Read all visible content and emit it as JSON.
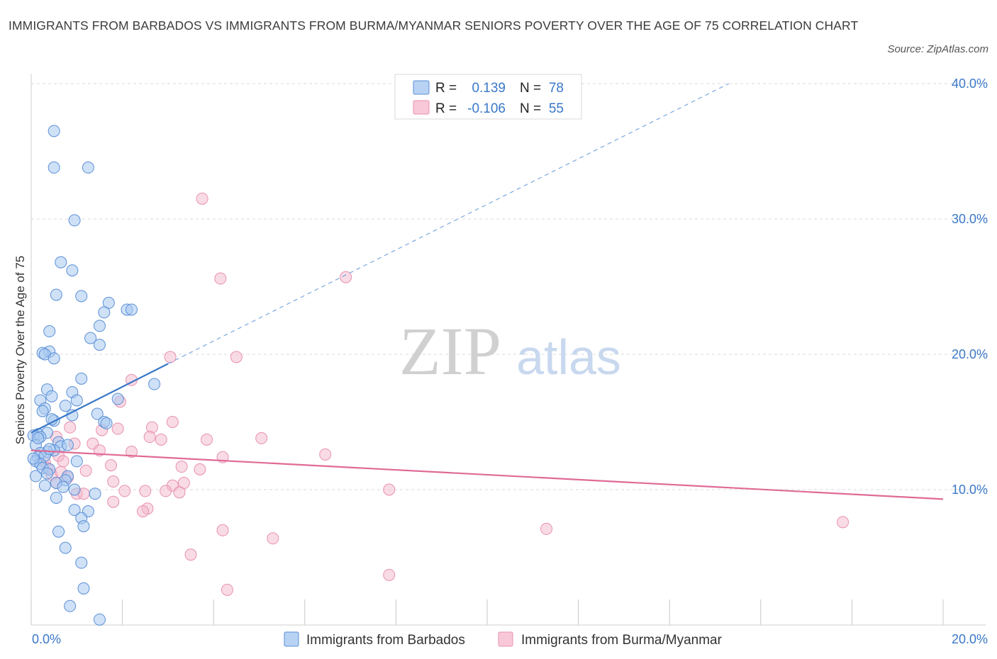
{
  "title": "IMMIGRANTS FROM BARBADOS VS IMMIGRANTS FROM BURMA/MYANMAR SENIORS POVERTY OVER THE AGE OF 75 CORRELATION CHART",
  "source": "Source: ZipAtlas.com",
  "watermark": {
    "zip": "ZIP",
    "atlas": "atlas"
  },
  "colors": {
    "blue": "#3a78c8",
    "blue_fill": "#a8c8f0",
    "pink": "#e06a96",
    "pink_fill": "#f4b8cc",
    "grid": "#d8d8d8"
  },
  "legend": {
    "rows": [
      {
        "r_label": "R =",
        "r_value": "0.139",
        "n_label": "N =",
        "n_value": "78"
      },
      {
        "r_label": "R =",
        "r_value": "-0.106",
        "n_label": "N =",
        "n_value": "55"
      }
    ]
  },
  "chart_data": {
    "type": "scatter",
    "title": "IMMIGRANTS FROM BARBADOS VS IMMIGRANTS FROM BURMA/MYANMAR SENIORS POVERTY OVER THE AGE OF 75 CORRELATION CHART",
    "xlabel": "",
    "ylabel": "Seniors Poverty Over the Age of 75",
    "xlim": [
      0,
      20
    ],
    "ylim": [
      0,
      40
    ],
    "x_tick_labels": [
      {
        "value": 0,
        "label": "0.0%"
      },
      {
        "value": 20,
        "label": "20.0%"
      }
    ],
    "y_tick_labels": [
      {
        "value": 10,
        "label": "10.0%"
      },
      {
        "value": 20,
        "label": "20.0%"
      },
      {
        "value": 30,
        "label": "30.0%"
      },
      {
        "value": 40,
        "label": "40.0%"
      }
    ],
    "series": [
      {
        "name": "Immigrants from Barbados",
        "color": "blue",
        "r": 0.139,
        "n": 78,
        "trend": {
          "x": [
            0,
            3.0
          ],
          "y": [
            14.2,
            19.3
          ],
          "dashed_extension": {
            "x": [
              3.0,
              15.3
            ],
            "y": [
              19.3,
              40
            ]
          }
        },
        "points": [
          [
            0.5,
            36.5
          ],
          [
            0.5,
            33.8
          ],
          [
            1.25,
            33.8
          ],
          [
            0.95,
            29.9
          ],
          [
            0.65,
            26.8
          ],
          [
            0.9,
            26.2
          ],
          [
            0.55,
            24.4
          ],
          [
            1.1,
            24.3
          ],
          [
            1.7,
            23.8
          ],
          [
            2.1,
            23.3
          ],
          [
            2.2,
            23.3
          ],
          [
            1.6,
            23.1
          ],
          [
            1.5,
            22.1
          ],
          [
            0.4,
            21.7
          ],
          [
            1.3,
            21.2
          ],
          [
            1.5,
            20.7
          ],
          [
            0.4,
            20.2
          ],
          [
            0.25,
            20.1
          ],
          [
            0.3,
            20.0
          ],
          [
            0.5,
            19.7
          ],
          [
            1.1,
            18.2
          ],
          [
            2.7,
            17.8
          ],
          [
            0.35,
            17.4
          ],
          [
            0.9,
            17.2
          ],
          [
            0.45,
            16.9
          ],
          [
            0.2,
            16.6
          ],
          [
            1.0,
            16.6
          ],
          [
            1.9,
            16.7
          ],
          [
            0.3,
            16.0
          ],
          [
            0.25,
            15.8
          ],
          [
            0.75,
            16.2
          ],
          [
            1.45,
            15.6
          ],
          [
            0.9,
            15.5
          ],
          [
            0.5,
            15.1
          ],
          [
            0.45,
            15.2
          ],
          [
            1.6,
            15.0
          ],
          [
            1.65,
            14.9
          ],
          [
            0.15,
            14.1
          ],
          [
            0.05,
            14.0
          ],
          [
            0.35,
            14.2
          ],
          [
            0.2,
            13.9
          ],
          [
            0.6,
            13.5
          ],
          [
            0.1,
            13.3
          ],
          [
            0.65,
            13.2
          ],
          [
            0.8,
            13.3
          ],
          [
            0.5,
            12.9
          ],
          [
            0.35,
            12.8
          ],
          [
            0.2,
            12.7
          ],
          [
            0.15,
            12.4
          ],
          [
            0.3,
            12.5
          ],
          [
            0.1,
            12.1
          ],
          [
            1.0,
            12.1
          ],
          [
            0.2,
            11.9
          ],
          [
            0.25,
            11.6
          ],
          [
            0.4,
            11.5
          ],
          [
            0.35,
            11.2
          ],
          [
            0.1,
            11.0
          ],
          [
            0.8,
            11.0
          ],
          [
            0.75,
            10.7
          ],
          [
            0.55,
            10.5
          ],
          [
            0.3,
            10.3
          ],
          [
            0.7,
            10.2
          ],
          [
            0.95,
            10.0
          ],
          [
            1.4,
            9.7
          ],
          [
            0.55,
            9.4
          ],
          [
            0.95,
            8.5
          ],
          [
            1.25,
            8.4
          ],
          [
            1.1,
            7.9
          ],
          [
            1.15,
            7.3
          ],
          [
            0.6,
            6.9
          ],
          [
            0.75,
            5.7
          ],
          [
            1.1,
            4.6
          ],
          [
            1.15,
            2.7
          ],
          [
            0.85,
            1.4
          ],
          [
            1.5,
            0.4
          ],
          [
            0.15,
            13.8
          ],
          [
            0.4,
            13.0
          ],
          [
            0.05,
            12.3
          ]
        ]
      },
      {
        "name": "Immigrants from Burma/Myanmar",
        "color": "pink",
        "r": -0.106,
        "n": 55,
        "trend": {
          "x": [
            0,
            20
          ],
          "y": [
            12.9,
            9.3
          ]
        },
        "points": [
          [
            3.75,
            31.5
          ],
          [
            4.15,
            25.6
          ],
          [
            6.9,
            25.7
          ],
          [
            3.05,
            19.8
          ],
          [
            4.5,
            19.8
          ],
          [
            2.2,
            18.1
          ],
          [
            1.95,
            16.5
          ],
          [
            3.1,
            15.0
          ],
          [
            0.85,
            14.6
          ],
          [
            1.55,
            14.4
          ],
          [
            1.9,
            14.5
          ],
          [
            2.65,
            14.6
          ],
          [
            0.55,
            13.9
          ],
          [
            2.6,
            13.9
          ],
          [
            2.85,
            13.7
          ],
          [
            3.85,
            13.7
          ],
          [
            5.05,
            13.8
          ],
          [
            1.35,
            13.4
          ],
          [
            0.95,
            13.4
          ],
          [
            1.5,
            12.9
          ],
          [
            2.2,
            12.8
          ],
          [
            0.6,
            12.5
          ],
          [
            4.2,
            12.4
          ],
          [
            6.45,
            12.6
          ],
          [
            0.3,
            12.0
          ],
          [
            0.7,
            12.1
          ],
          [
            1.75,
            11.8
          ],
          [
            0.35,
            11.6
          ],
          [
            1.2,
            11.4
          ],
          [
            3.3,
            11.7
          ],
          [
            3.7,
            11.5
          ],
          [
            0.45,
            11.1
          ],
          [
            0.65,
            11.3
          ],
          [
            0.8,
            10.9
          ],
          [
            1.8,
            10.6
          ],
          [
            3.35,
            10.5
          ],
          [
            0.55,
            10.5
          ],
          [
            3.1,
            10.3
          ],
          [
            7.85,
            10.0
          ],
          [
            2.5,
            9.9
          ],
          [
            2.05,
            9.9
          ],
          [
            2.95,
            9.9
          ],
          [
            1.0,
            9.7
          ],
          [
            1.15,
            9.7
          ],
          [
            3.25,
            9.8
          ],
          [
            1.8,
            9.1
          ],
          [
            2.55,
            8.6
          ],
          [
            2.45,
            8.4
          ],
          [
            11.3,
            7.1
          ],
          [
            17.8,
            7.6
          ],
          [
            4.2,
            7.0
          ],
          [
            5.3,
            6.4
          ],
          [
            3.5,
            5.2
          ],
          [
            7.85,
            3.7
          ],
          [
            4.3,
            2.6
          ]
        ]
      }
    ]
  },
  "bottom_legend": [
    {
      "label": "Immigrants from Barbados",
      "color": "blue"
    },
    {
      "label": "Immigrants from Burma/Myanmar",
      "color": "pink"
    }
  ]
}
